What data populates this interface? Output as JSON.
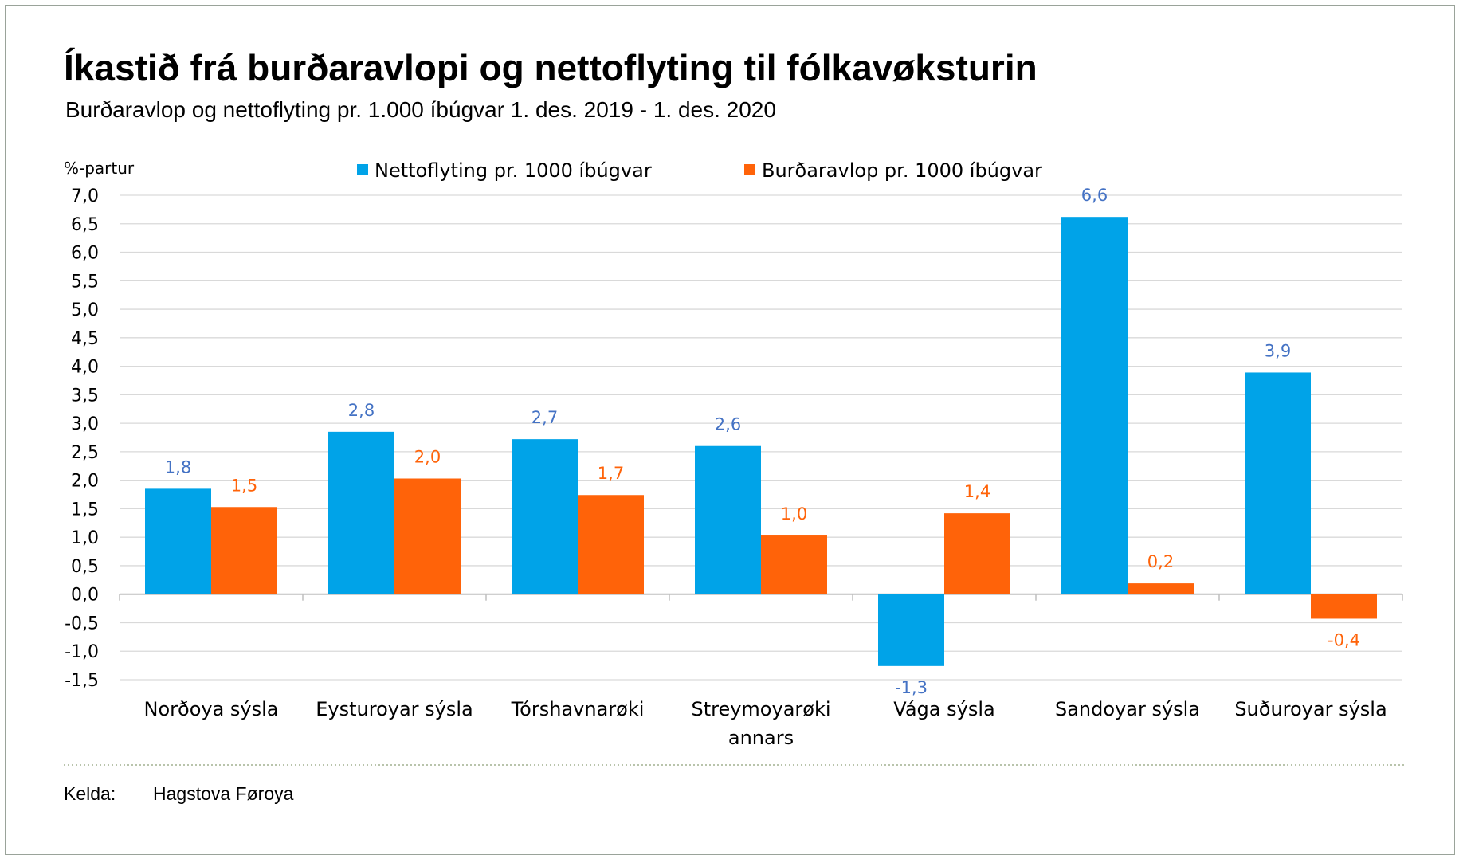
{
  "chart_data": {
    "type": "bar",
    "title": "Íkastið frá burðaravlopi og nettoflyting til fólkavøksturin",
    "subtitle": "Burðaravlop og nettoflyting pr. 1.000 íbúgvar 1. des. 2019 - 1. des. 2020",
    "ylabel": "%-partur",
    "xlabel": "",
    "ylim": [
      -1.5,
      7.0
    ],
    "ytick_values": [
      7.0,
      6.5,
      6.0,
      5.5,
      5.0,
      4.5,
      4.0,
      3.5,
      3.0,
      2.5,
      2.0,
      1.5,
      1.0,
      0.5,
      0.0,
      -0.5,
      -1.0,
      -1.5
    ],
    "ytick_labels": [
      "7,0",
      "6,5",
      "6,0",
      "5,5",
      "5,0",
      "4,5",
      "4,0",
      "3,5",
      "3,0",
      "2,5",
      "2,0",
      "1,5",
      "1,0",
      "0,5",
      "0,0",
      "-0,5",
      "-1,0",
      "-1,5"
    ],
    "grid": true,
    "legend_position": "top",
    "categories": [
      [
        "Norðoya sýsla"
      ],
      [
        "Eysturoyar sýsla"
      ],
      [
        "Tórshavnarøki"
      ],
      [
        "Streymoyarøki",
        "annars"
      ],
      [
        "Vága sýsla"
      ],
      [
        "Sandoyar sýsla"
      ],
      [
        "Suðuroyar sýsla"
      ]
    ],
    "series": [
      {
        "name": "Nettoflyting pr. 1000 íbúgvar",
        "color": "#00a3e8",
        "label_color": "#4472c4",
        "values": [
          1.85,
          2.85,
          2.72,
          2.6,
          -1.26,
          6.62,
          3.89
        ],
        "labels": [
          "1,8",
          "2,8",
          "2,7",
          "2,6",
          "-1,3",
          "6,6",
          "3,9"
        ]
      },
      {
        "name": "Burðaravlop pr. 1000 íbúgvar",
        "color": "#ff6309",
        "label_color": "#ff6309",
        "values": [
          1.53,
          2.03,
          1.74,
          1.03,
          1.42,
          0.19,
          -0.43
        ],
        "labels": [
          "1,5",
          "2,0",
          "1,7",
          "1,0",
          "1,4",
          "0,2",
          "-0,4"
        ]
      }
    ]
  },
  "source": {
    "label": "Kelda:",
    "value": "Hagstova Føroya"
  }
}
